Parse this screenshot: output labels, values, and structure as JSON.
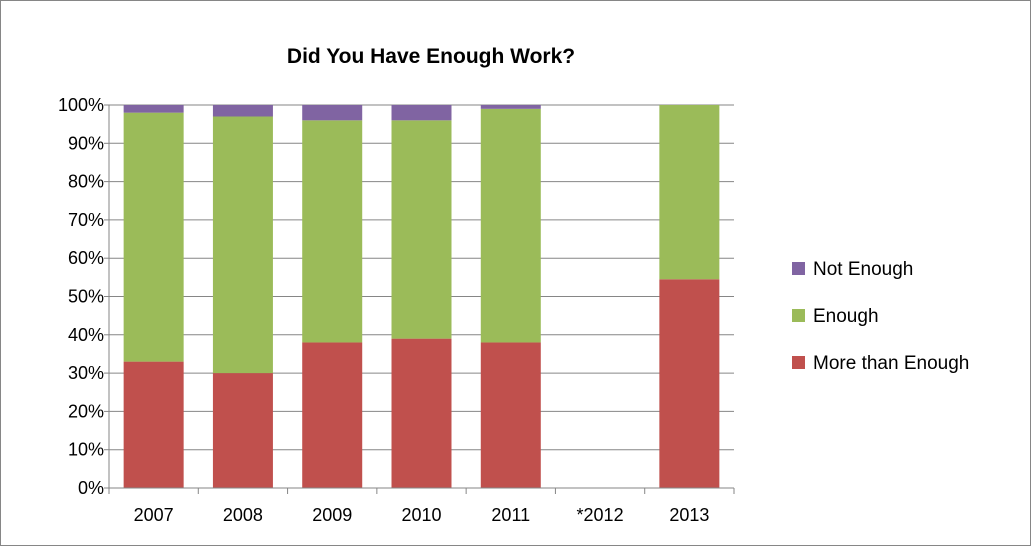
{
  "chart_data": {
    "type": "bar",
    "stacked": true,
    "title": "Did You Have Enough Work?",
    "categories": [
      "2007",
      "2008",
      "2009",
      "2010",
      "2011",
      "*2012",
      "2013"
    ],
    "ylim": [
      0,
      100
    ],
    "y_ticks": [
      "0%",
      "10%",
      "20%",
      "30%",
      "40%",
      "50%",
      "60%",
      "70%",
      "80%",
      "90%",
      "100%"
    ],
    "grid": true,
    "legend_position": "right",
    "series": [
      {
        "name": "More than Enough",
        "color": "#c0504d",
        "values": [
          33,
          30,
          38,
          39,
          38,
          null,
          54.5
        ]
      },
      {
        "name": "Enough",
        "color": "#9bbb59",
        "values": [
          65,
          67,
          58,
          57,
          61,
          null,
          45.5
        ]
      },
      {
        "name": "Not Enough",
        "color": "#8064a2",
        "values": [
          2,
          3,
          4,
          4,
          1,
          null,
          0
        ]
      }
    ],
    "legend_order": [
      "Not Enough",
      "Enough",
      "More than Enough"
    ]
  }
}
